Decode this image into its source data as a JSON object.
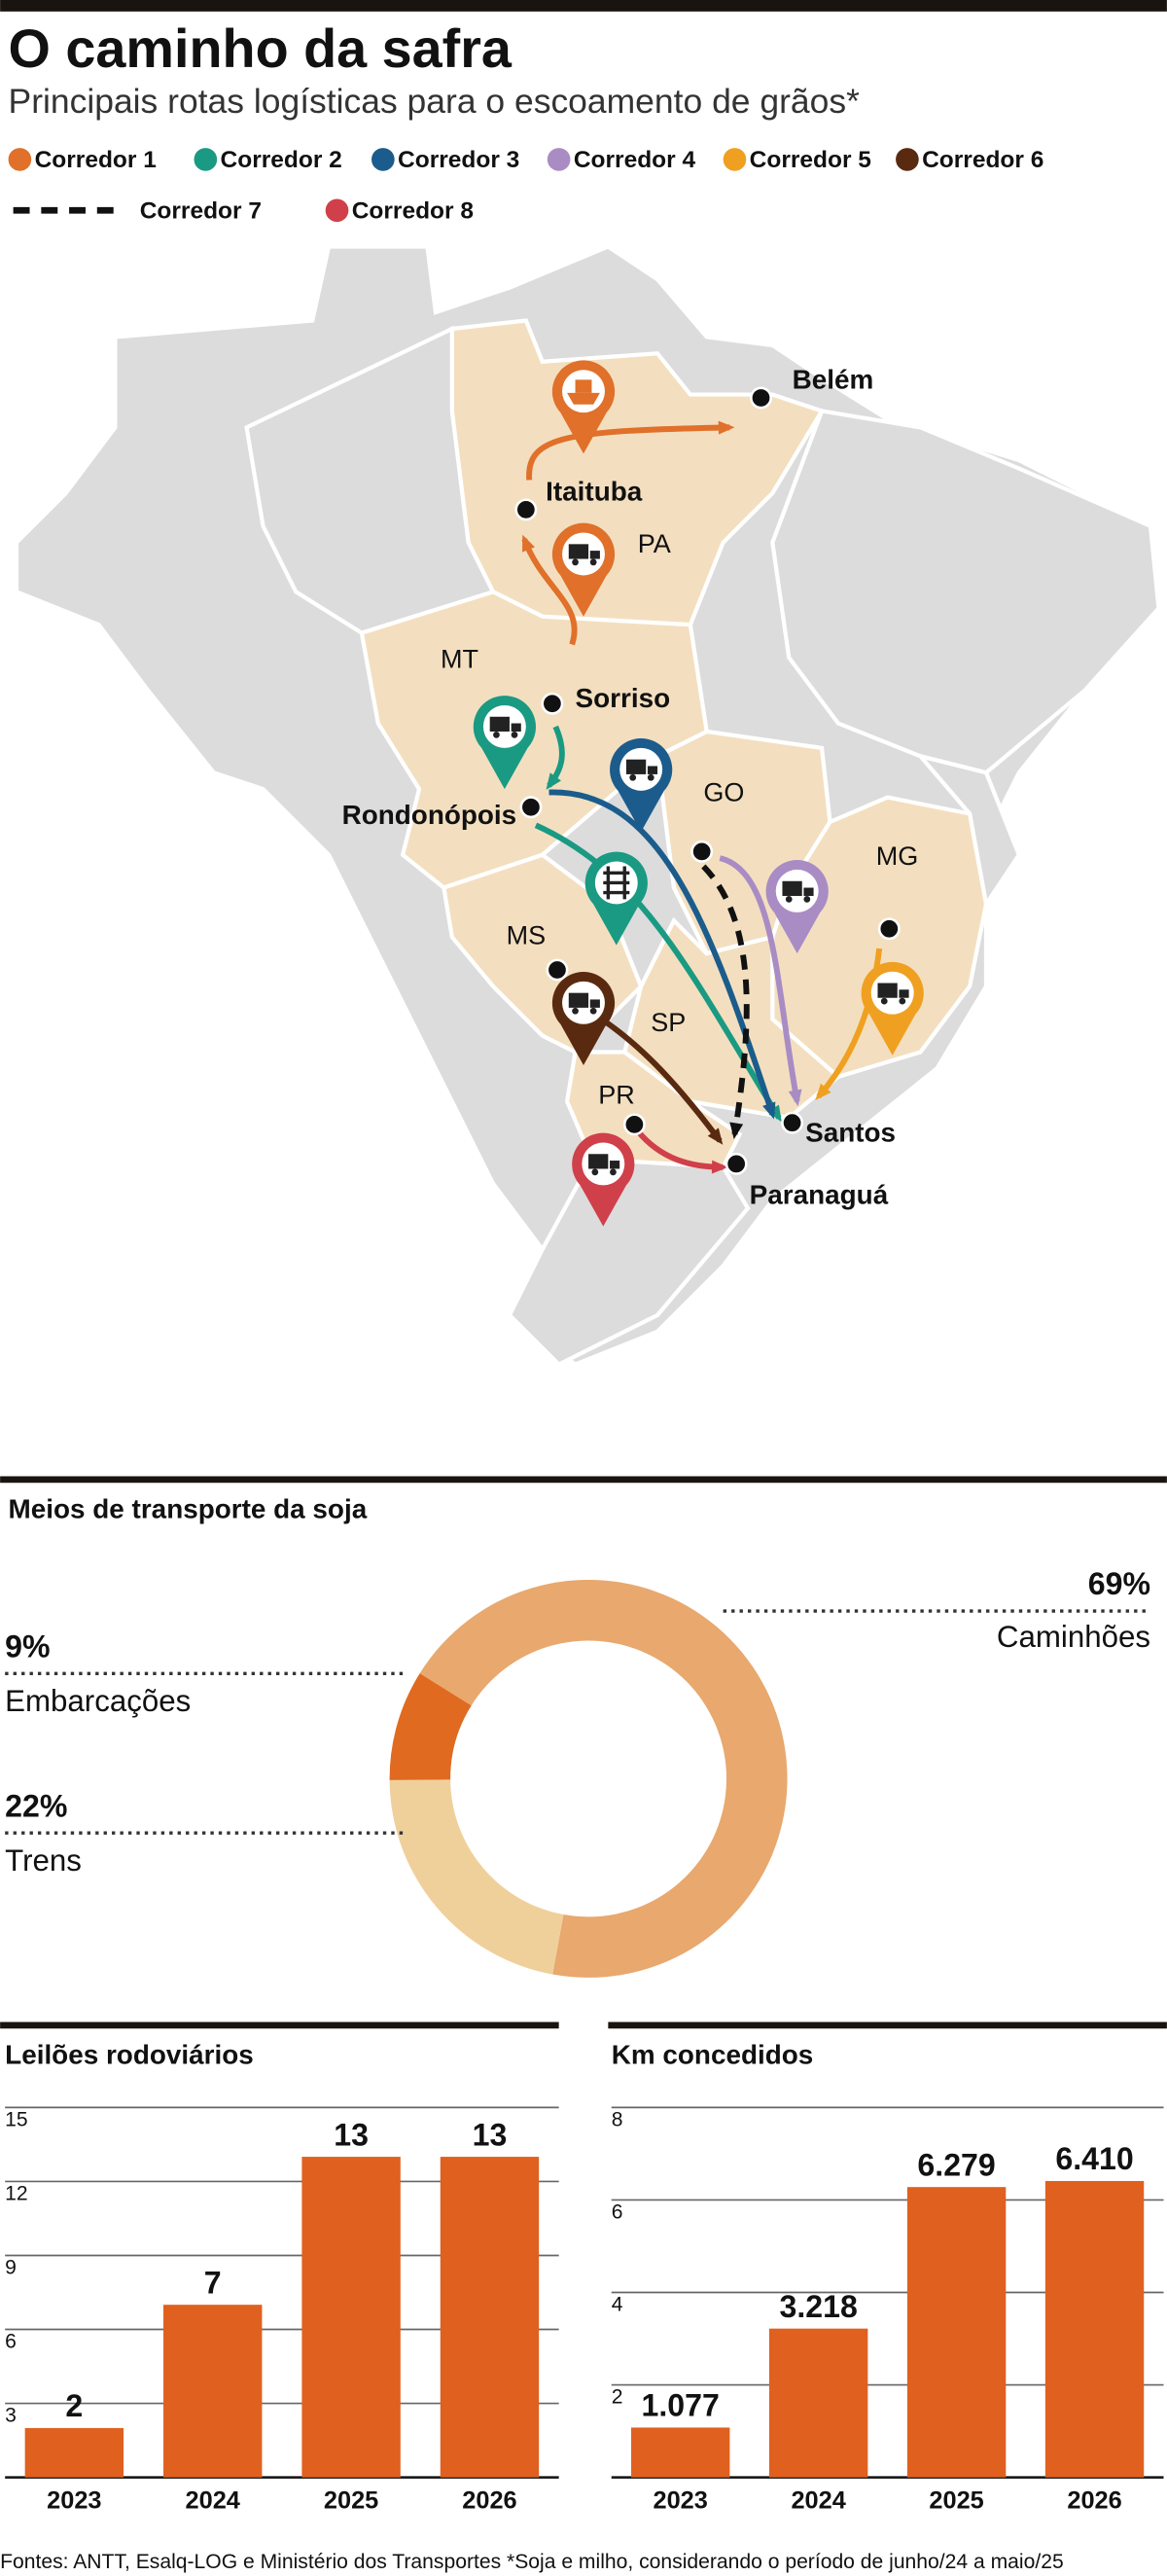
{
  "header": {
    "title": "O caminho da safra",
    "subtitle": "Principais rotas logísticas para o escoamento de grãos*"
  },
  "legend": {
    "items": [
      {
        "label": "Corredor 1",
        "color": "#e0702a"
      },
      {
        "label": "Corredor 2",
        "color": "#1a9a82"
      },
      {
        "label": "Corredor 3",
        "color": "#1b5c8c"
      },
      {
        "label": "Corredor 4",
        "color": "#a98cc4"
      },
      {
        "label": "Corredor 5",
        "color": "#f0a020"
      },
      {
        "label": "Corredor 6",
        "color": "#5a2a10"
      },
      {
        "label": "Corredor 7",
        "color": "#111111",
        "line_style": "dashed"
      },
      {
        "label": "Corredor 8",
        "color": "#d0404a"
      }
    ]
  },
  "map": {
    "cities": [
      "Belém",
      "Itaituba",
      "Sorriso",
      "Rondonópois",
      "Santos",
      "Paranaguá"
    ],
    "states": [
      "PA",
      "MT",
      "GO",
      "MG",
      "MS",
      "SP",
      "PR"
    ]
  },
  "chart_data": [
    {
      "type": "donut",
      "title": "Meios de transporte da soja",
      "categories": [
        "Caminhões",
        "Trens",
        "Embarcações"
      ],
      "values": [
        69,
        22,
        9
      ],
      "value_labels": [
        "69%",
        "22%",
        "9%"
      ],
      "colors": [
        "#e8a86e",
        "#f0d09a",
        "#e06a20"
      ]
    },
    {
      "type": "bar",
      "title": "Leilões rodoviários",
      "categories": [
        "2023",
        "2024",
        "2025",
        "2026"
      ],
      "values": [
        2,
        7,
        13,
        13
      ],
      "color": "#e0601f",
      "ylim": [
        0,
        15
      ],
      "yticks": [
        3,
        6,
        9,
        12,
        15
      ],
      "grid": true
    },
    {
      "type": "bar",
      "title": "Km concedidos",
      "categories": [
        "2023",
        "2024",
        "2025",
        "2026"
      ],
      "values": [
        1.077,
        3.218,
        6.279,
        6.41
      ],
      "value_labels": [
        "1.077",
        "3.218",
        "6.279",
        "6.410"
      ],
      "color": "#e0601f",
      "ylim": [
        0,
        8
      ],
      "yticks": [
        2,
        4,
        6,
        8
      ],
      "grid": true
    }
  ],
  "footer": {
    "source": "Fontes: ANTT, Esalq-LOG e Ministério dos Transportes *Soja e milho, considerando o período de junho/24 a maio/25"
  }
}
